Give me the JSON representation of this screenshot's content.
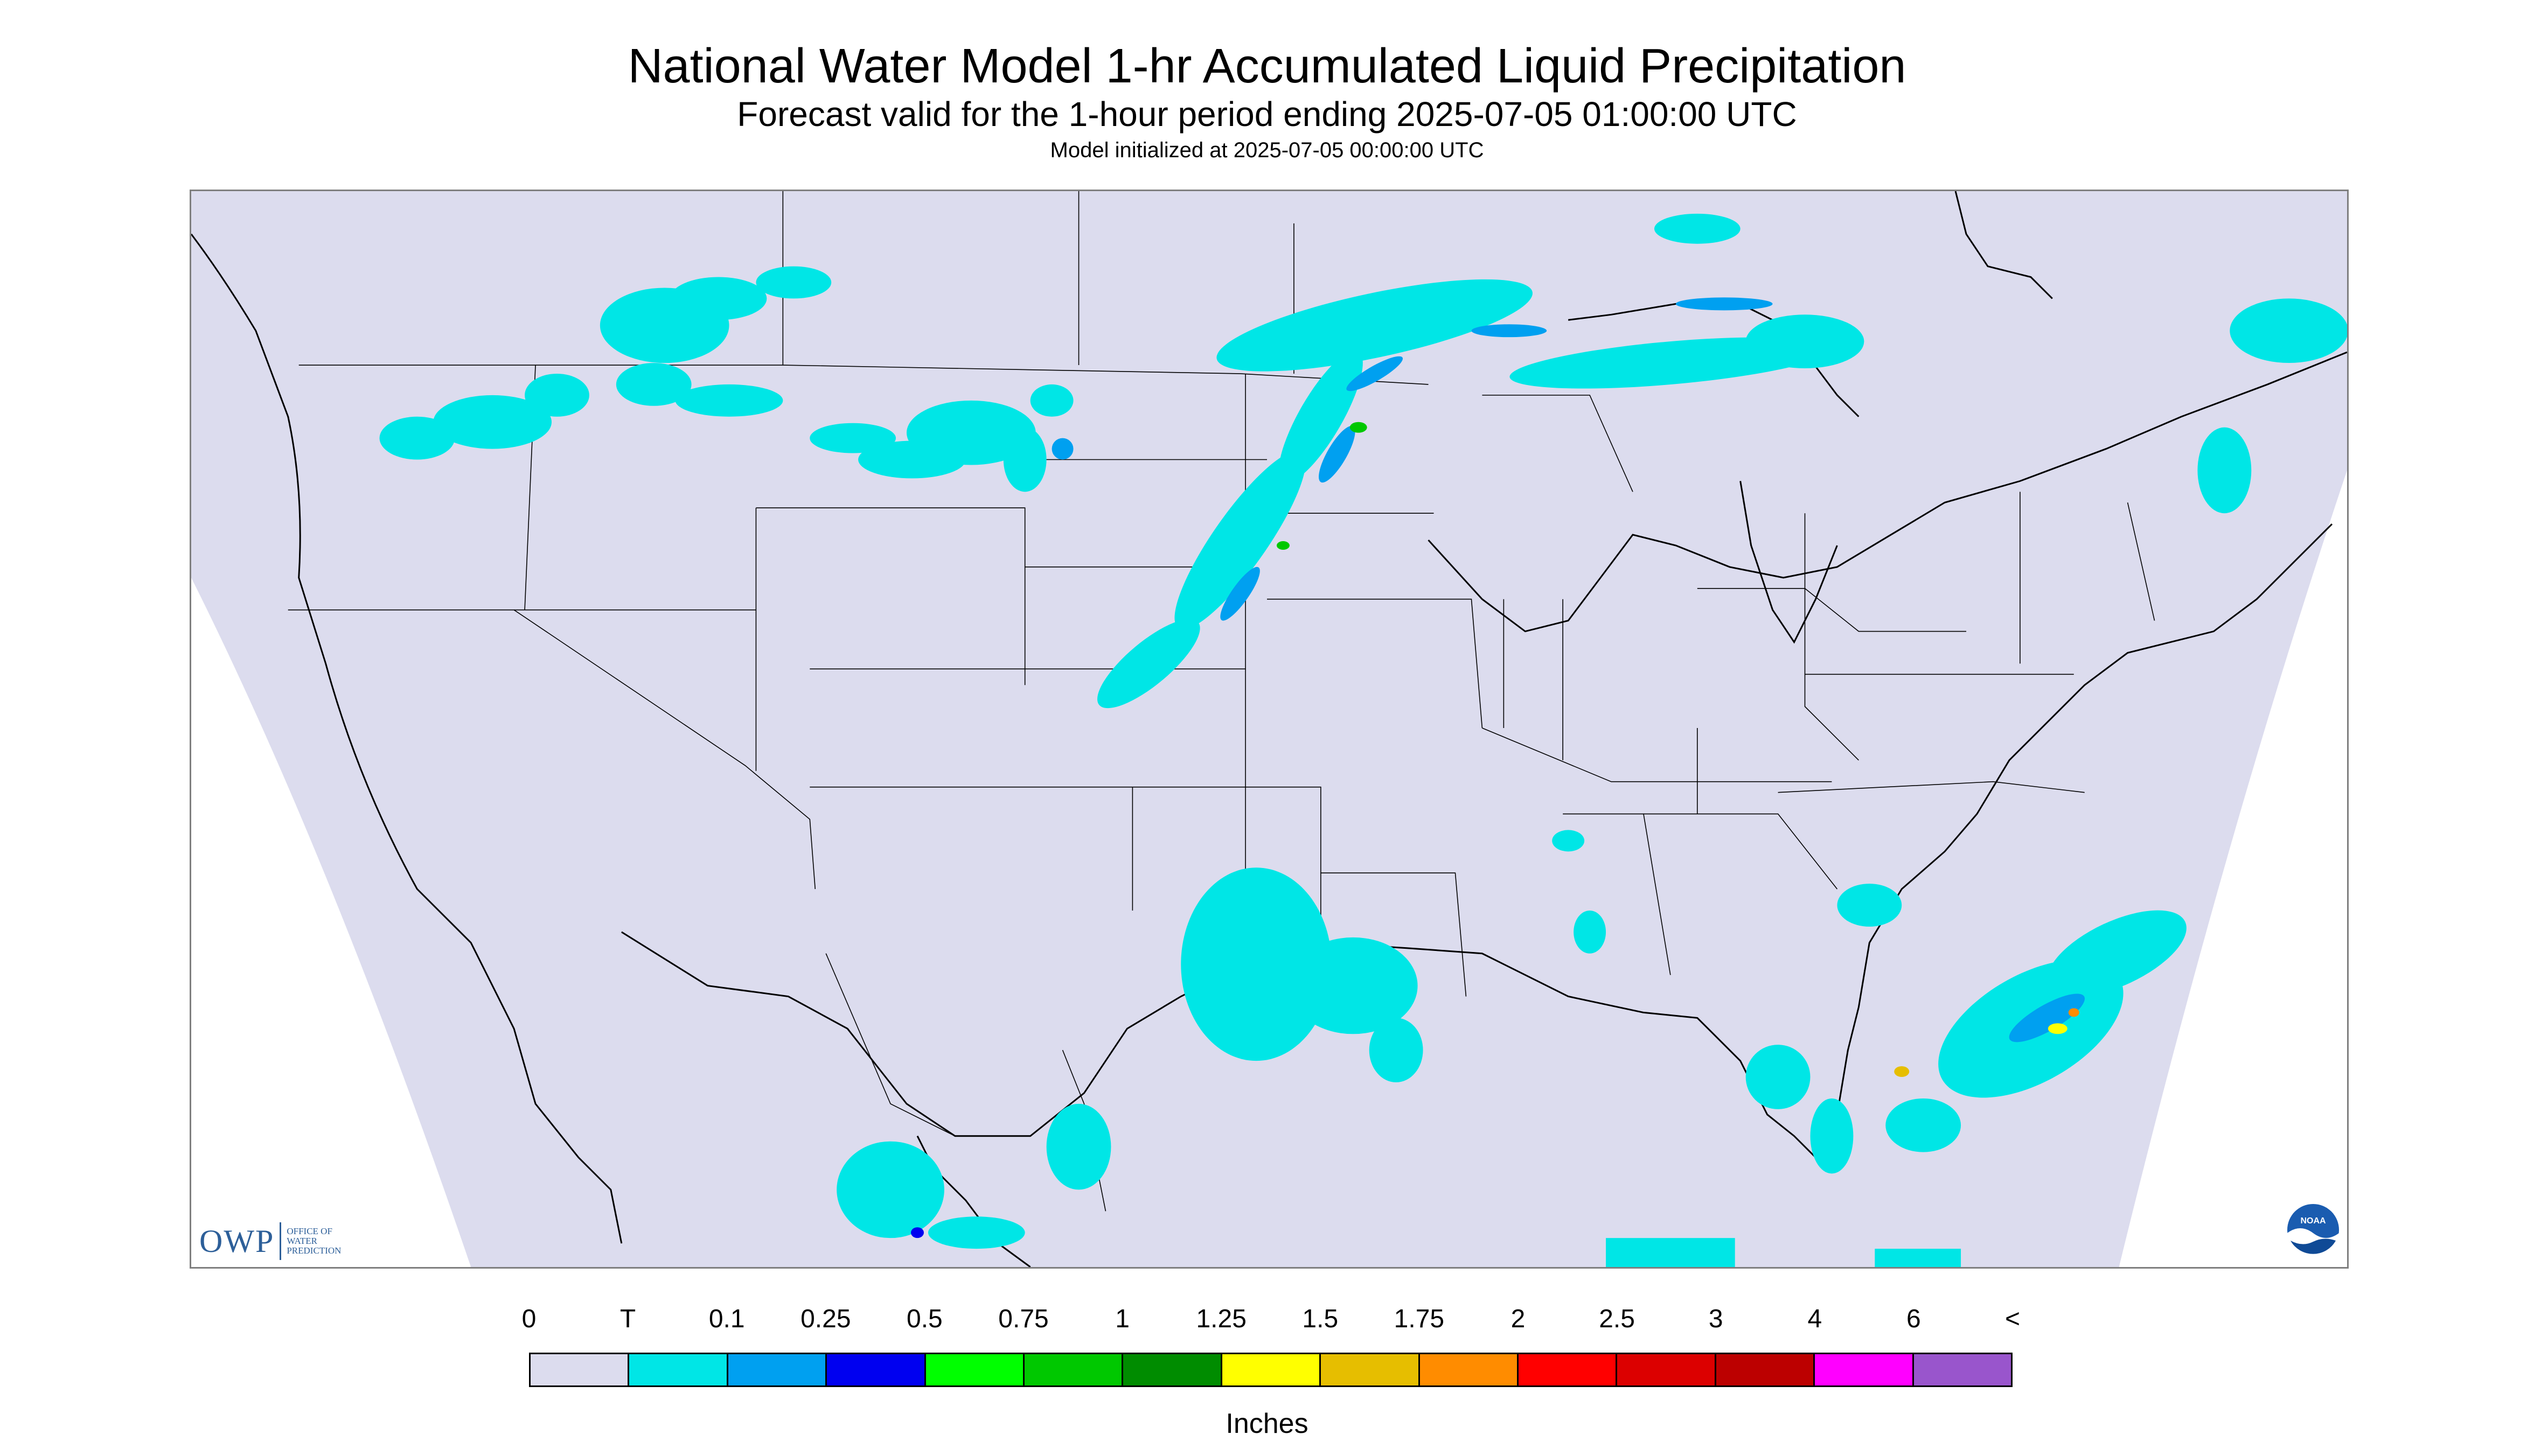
{
  "title": "National Water Model 1-hr Accumulated Liquid Precipitation",
  "subtitle": "Forecast valid for the 1-hour period ending 2025-07-05 01:00:00 UTC",
  "model_init": "Model initialized at 2025-07-05 00:00:00 UTC",
  "logo_owp": {
    "mark": "OWP",
    "text": "OFFICE OF WATER PREDICTION"
  },
  "logo_noaa": {
    "text": "NOAA"
  },
  "legend": {
    "units": "Inches",
    "labels": [
      "0",
      "T",
      "0.1",
      "0.25",
      "0.5",
      "0.75",
      "1",
      "1.25",
      "1.5",
      "1.75",
      "2",
      "2.5",
      "3",
      "4",
      "6",
      "<"
    ],
    "colors": [
      "#dcdcee",
      "#00e6e6",
      "#00a0f0",
      "#0000f0",
      "#00ff00",
      "#00c800",
      "#008c00",
      "#ffff00",
      "#e6be00",
      "#ff8c00",
      "#ff0000",
      "#dc0000",
      "#bc0000",
      "#ff00ff",
      "#9955cc"
    ]
  },
  "map": {
    "background_color": "#dcdcee",
    "outside_color": "#ffffff",
    "boundary_color": "#000000"
  }
}
